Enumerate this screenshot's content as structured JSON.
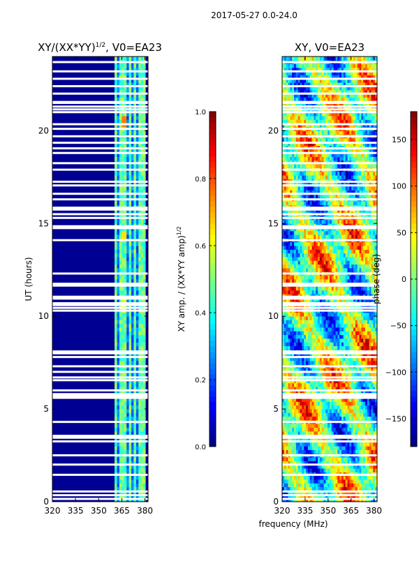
{
  "suptitle": "2017-05-27 0.0-24.0",
  "colors": {
    "jet": [
      "#00007f",
      "#0000ff",
      "#007fff",
      "#00ffff",
      "#7fff7f",
      "#ffff00",
      "#ff7f00",
      "#ff0000",
      "#7f0000"
    ],
    "gap": "#ffffff"
  },
  "chart_data": [
    {
      "type": "heatmap",
      "title_main": "XY/(XX*YY)",
      "title_exp": "1/2",
      "title_tail": ", V0=EA23",
      "xlabel": "",
      "ylabel": "UT (hours)",
      "xlim": [
        320,
        382
      ],
      "ylim": [
        0,
        24
      ],
      "xticks": [
        320,
        335,
        350,
        365,
        380
      ],
      "yticks": [
        0,
        5,
        10,
        15,
        20
      ],
      "colorbar": {
        "label_main": "XY amp. / (XX*YY amp)",
        "label_exp": "1/2",
        "range": [
          0.0,
          1.0
        ],
        "ticks": [
          "0.0",
          "0.2",
          "0.4",
          "0.6",
          "0.8",
          "1.0"
        ]
      },
      "band_range_mhz": [
        360,
        380
      ],
      "bright_channels_mhz": [
        361,
        365,
        367,
        370,
        373,
        377,
        379
      ],
      "hotspots": [
        {
          "freq": 366.5,
          "ut": 20.5,
          "value": 0.75
        },
        {
          "freq": 366.5,
          "ut": 14.3,
          "value": 0.65
        },
        {
          "freq": 366.5,
          "ut": 10.6,
          "value": 0.6
        }
      ]
    },
    {
      "type": "heatmap",
      "title_main": "XY, V0=EA23",
      "xlabel": "frequency (MHz)",
      "ylabel": "",
      "xlim": [
        320,
        382
      ],
      "ylim": [
        0,
        24
      ],
      "xticks": [
        320,
        335,
        350,
        365,
        380
      ],
      "yticks": [
        0,
        5,
        10,
        15,
        20
      ],
      "colorbar": {
        "label_main": "phase (deg)",
        "range": [
          -180,
          180
        ],
        "ticks": [
          "−150",
          "−100",
          "−50",
          "0",
          "50",
          "100",
          "150"
        ]
      }
    }
  ],
  "flagged_ut_hours": [
    0.15,
    0.35,
    0.55,
    1.45,
    2.0,
    2.5,
    3.25,
    3.45,
    3.55,
    4.3,
    5.6,
    5.7,
    5.8,
    6.0,
    6.55,
    6.7,
    7.0,
    7.3,
    7.8,
    8.0,
    8.1,
    10.3,
    10.45,
    10.6,
    10.7,
    10.95,
    11.05,
    11.65,
    11.75,
    12.3,
    14.1,
    14.75,
    14.85,
    15.3,
    15.5,
    15.75,
    15.85,
    16.3,
    16.6,
    17.05,
    17.25,
    17.9,
    18.25,
    18.8,
    19.05,
    19.35,
    19.7,
    20.1,
    20.35,
    21.0,
    21.15,
    21.3,
    21.5,
    21.55,
    22.0,
    22.4,
    22.8,
    23.2,
    23.7
  ]
}
